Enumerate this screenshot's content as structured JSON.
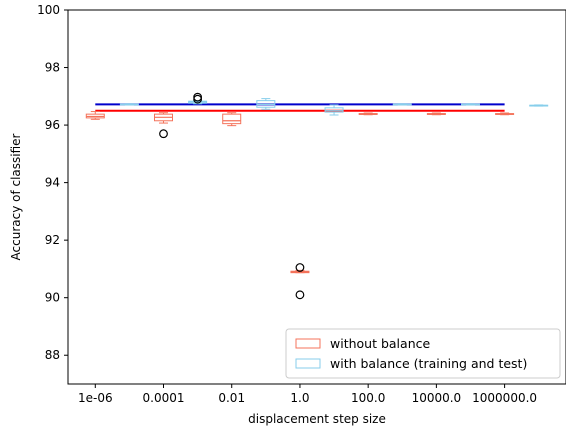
{
  "chart_data": {
    "type": "box",
    "xlabel": "displacement step size",
    "ylabel": "Accuracy of classifier",
    "ylim": [
      87,
      100
    ],
    "yticks": [
      88,
      90,
      92,
      94,
      96,
      98,
      100
    ],
    "categories": [
      "1e-06",
      "0.0001",
      "0.01",
      "1.0",
      "100.0",
      "10000.0",
      "1000000.0"
    ],
    "category_positions": [
      -6,
      -5,
      -4,
      -3,
      -2,
      -1,
      0,
      1,
      2,
      3,
      4,
      5,
      6,
      7
    ],
    "x_scale": "log10",
    "xlim": [
      -6.8,
      7.8
    ],
    "legend_position": "lower right",
    "series": [
      {
        "name": "without balance",
        "color": "#f4735b",
        "reference_line": {
          "value": 96.5,
          "color": "#ff0000",
          "x_range": [
            -6,
            6
          ]
        },
        "boxes": [
          {
            "x": -6,
            "whislo": 96.2,
            "q1": 96.25,
            "med": 96.3,
            "q3": 96.38,
            "whishi": 96.47,
            "fliers": []
          },
          {
            "x": -4,
            "whislo": 96.07,
            "q1": 96.15,
            "med": 96.27,
            "q3": 96.38,
            "whishi": 96.43,
            "fliers": [
              95.7
            ]
          },
          {
            "x": -2,
            "whislo": 95.98,
            "q1": 96.05,
            "med": 96.15,
            "q3": 96.38,
            "whishi": 96.43,
            "fliers": []
          },
          {
            "x": 0,
            "whislo": 90.87,
            "q1": 90.87,
            "med": 90.89,
            "q3": 90.92,
            "whishi": 90.95,
            "fliers": [
              91.05,
              90.1
            ]
          },
          {
            "x": 2,
            "whislo": 96.36,
            "q1": 96.37,
            "med": 96.38,
            "q3": 96.4,
            "whishi": 96.42,
            "fliers": []
          },
          {
            "x": 4,
            "whislo": 96.36,
            "q1": 96.37,
            "med": 96.38,
            "q3": 96.4,
            "whishi": 96.42,
            "fliers": []
          },
          {
            "x": 6,
            "whislo": 96.36,
            "q1": 96.37,
            "med": 96.38,
            "q3": 96.4,
            "whishi": 96.42,
            "fliers": []
          }
        ]
      },
      {
        "name": "with balance (training and test)",
        "color": "#87ceeb",
        "reference_line": {
          "value": 96.72,
          "color": "#0000cc",
          "x_range": [
            -6,
            6
          ]
        },
        "boxes": [
          {
            "x": -5,
            "whislo": 96.7,
            "q1": 96.71,
            "med": 96.72,
            "q3": 96.73,
            "whishi": 96.74,
            "fliers": []
          },
          {
            "x": -3,
            "whislo": 96.74,
            "q1": 96.76,
            "med": 96.8,
            "q3": 96.83,
            "whishi": 96.85,
            "fliers": [
              96.97,
              96.9
            ]
          },
          {
            "x": -1,
            "whislo": 96.55,
            "q1": 96.62,
            "med": 96.72,
            "q3": 96.85,
            "whishi": 96.92,
            "fliers": []
          },
          {
            "x": 1,
            "whislo": 96.35,
            "q1": 96.45,
            "med": 96.5,
            "q3": 96.6,
            "whishi": 96.7,
            "fliers": []
          },
          {
            "x": 3,
            "whislo": 96.7,
            "q1": 96.71,
            "med": 96.72,
            "q3": 96.73,
            "whishi": 96.74,
            "fliers": []
          },
          {
            "x": 5,
            "whislo": 96.7,
            "q1": 96.71,
            "med": 96.72,
            "q3": 96.73,
            "whishi": 96.74,
            "fliers": []
          },
          {
            "x": 7,
            "whislo": 96.66,
            "q1": 96.67,
            "med": 96.68,
            "q3": 96.69,
            "whishi": 96.7,
            "fliers": []
          }
        ]
      }
    ]
  }
}
